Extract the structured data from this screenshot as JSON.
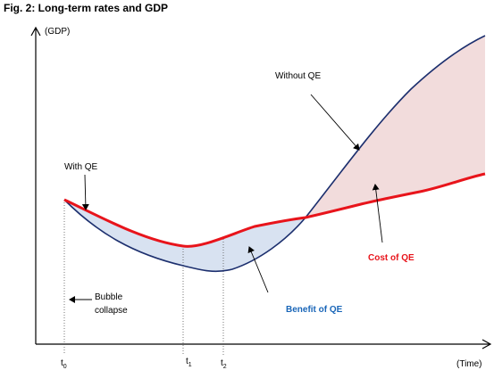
{
  "title": "Fig. 2: Long-term rates and GDP",
  "axes": {
    "y_label": "(GDP)",
    "x_label": "(Time)"
  },
  "ticks": [
    {
      "base": "t",
      "sub": "0"
    },
    {
      "base": "t",
      "sub": "1"
    },
    {
      "base": "t",
      "sub": "2"
    }
  ],
  "labels": {
    "with_qe": "With QE",
    "without_qe": "Without QE",
    "bubble_line1": "Bubble",
    "bubble_line2": "collapse",
    "cost": "Cost of QE",
    "benefit": "Benefit of QE"
  },
  "colors": {
    "with_qe_curve": "#e8141b",
    "without_qe_curve": "#1c2f6e",
    "cost_area": "#f2dcdc",
    "benefit_area": "#d8e2f1",
    "cost_label": "#e8141b",
    "benefit_label": "#1a66b8"
  }
}
